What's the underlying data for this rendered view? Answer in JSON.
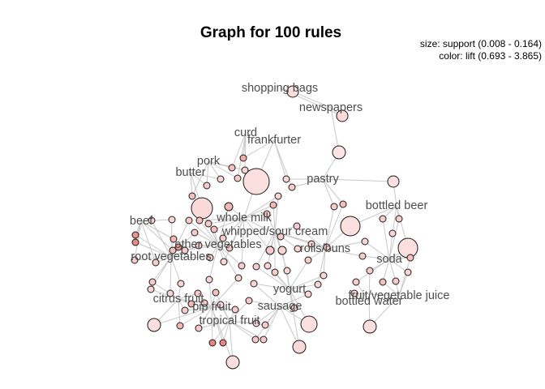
{
  "figure": {
    "title": "Graph for 100 rules",
    "legend_size": "size: support (0.008 - 0.164)",
    "legend_color": "color: lift (0.693 - 3.865)"
  },
  "colors": {
    "edge": "#c8c8c8",
    "node_stroke": "#1a1a1a",
    "label": "#4d4d4d",
    "lift_low": "#fde9e9",
    "lift_high": "#e8857f"
  },
  "items": [
    {
      "id": "shopping-bags",
      "label": "shopping bags"
    },
    {
      "id": "newspapers",
      "label": "newspapers"
    },
    {
      "id": "curd",
      "label": "curd"
    },
    {
      "id": "frankfurter",
      "label": "frankfurter"
    },
    {
      "id": "pork",
      "label": "pork"
    },
    {
      "id": "butter",
      "label": "butter"
    },
    {
      "id": "pastry",
      "label": "pastry"
    },
    {
      "id": "bottled-beer",
      "label": "bottled beer"
    },
    {
      "id": "beef",
      "label": "beef"
    },
    {
      "id": "whole-milk",
      "label": "whole milk"
    },
    {
      "id": "whipped-sour-cream",
      "label": "whipped/sour cream"
    },
    {
      "id": "other-vegetables",
      "label": "other vegetables"
    },
    {
      "id": "rolls-buns",
      "label": "rolls/buns"
    },
    {
      "id": "root-vegetables",
      "label": "root vegetables"
    },
    {
      "id": "soda",
      "label": "soda"
    },
    {
      "id": "yogurt",
      "label": "yogurt"
    },
    {
      "id": "fruit-vegetable-juice",
      "label": "fruit/vegetable juice"
    },
    {
      "id": "citrus-fruit",
      "label": "citrus fruit"
    },
    {
      "id": "sausage",
      "label": "sausage"
    },
    {
      "id": "bottled-water",
      "label": "bottled water"
    },
    {
      "id": "pip-fruit",
      "label": "pip fruit"
    },
    {
      "id": "tropical-fruit",
      "label": "tropical fruit"
    }
  ]
}
